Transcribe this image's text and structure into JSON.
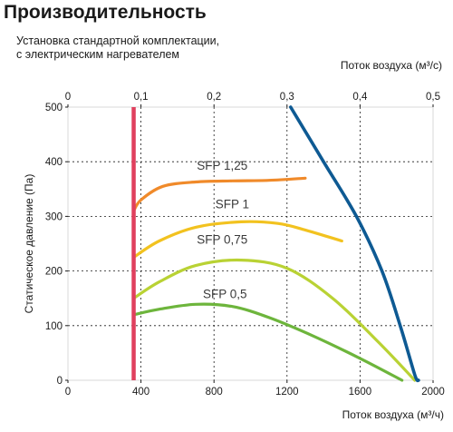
{
  "title": "Производительность",
  "subtitle_lines": [
    "Установка стандартной комплектации,",
    "с электрическим нагревателем"
  ],
  "colors": {
    "grid": "#1a1a1a",
    "axis_line": "#d8d8d8",
    "limit_line": "#e0405e",
    "fan_curve": "#0e5a93",
    "sfp_1_25": "#f08a2a",
    "sfp_1": "#f2c21f",
    "sfp_0_75": "#b9d234",
    "sfp_0_5": "#6db53c"
  },
  "chart_data": {
    "type": "line",
    "xlabel": "Поток воздуха (м³/ч)",
    "x2label": "Поток воздуха (м³/с)",
    "ylabel": "Статическое давление (Па)",
    "xlim": [
      0,
      2000
    ],
    "ylim": [
      0,
      500
    ],
    "x_ticks": [
      "0",
      "400",
      "800",
      "1200",
      "1600",
      "2000"
    ],
    "x2_ticks": [
      "0",
      "0,1",
      "0,2",
      "0,3",
      "0,4",
      "0,5"
    ],
    "y_ticks": [
      "0",
      "100",
      "200",
      "300",
      "400",
      "500"
    ],
    "grid": true,
    "limit_line_x": 360,
    "series": [
      {
        "name": "fan",
        "x": [
          1220,
          1400,
          1580,
          1720,
          1820,
          1900,
          1920
        ],
        "y": [
          500,
          400,
          300,
          200,
          100,
          10,
          0
        ]
      },
      {
        "name": "SFP 1,25",
        "x": [
          360,
          400,
          520,
          700,
          900,
          1100,
          1300
        ],
        "y": [
          310,
          330,
          355,
          363,
          365,
          366,
          370
        ]
      },
      {
        "name": "SFP 1",
        "x": [
          360,
          500,
          700,
          950,
          1150,
          1300,
          1500
        ],
        "y": [
          225,
          255,
          280,
          290,
          287,
          275,
          255
        ]
      },
      {
        "name": "SFP 0,75",
        "x": [
          360,
          500,
          700,
          950,
          1200,
          1450,
          1700,
          1900
        ],
        "y": [
          150,
          180,
          210,
          220,
          205,
          150,
          70,
          0
        ]
      },
      {
        "name": "SFP 0,5",
        "x": [
          360,
          500,
          700,
          900,
          1100,
          1350,
          1600,
          1830
        ],
        "y": [
          120,
          130,
          139,
          135,
          115,
          80,
          40,
          0
        ]
      }
    ],
    "annotations": [
      {
        "text": "SFP 1,25",
        "x": 845,
        "y": 385
      },
      {
        "text": "SFP 1",
        "x": 900,
        "y": 315
      },
      {
        "text": "SFP 0,75",
        "x": 845,
        "y": 250
      },
      {
        "text": "SFP 0,5",
        "x": 860,
        "y": 150
      }
    ]
  }
}
